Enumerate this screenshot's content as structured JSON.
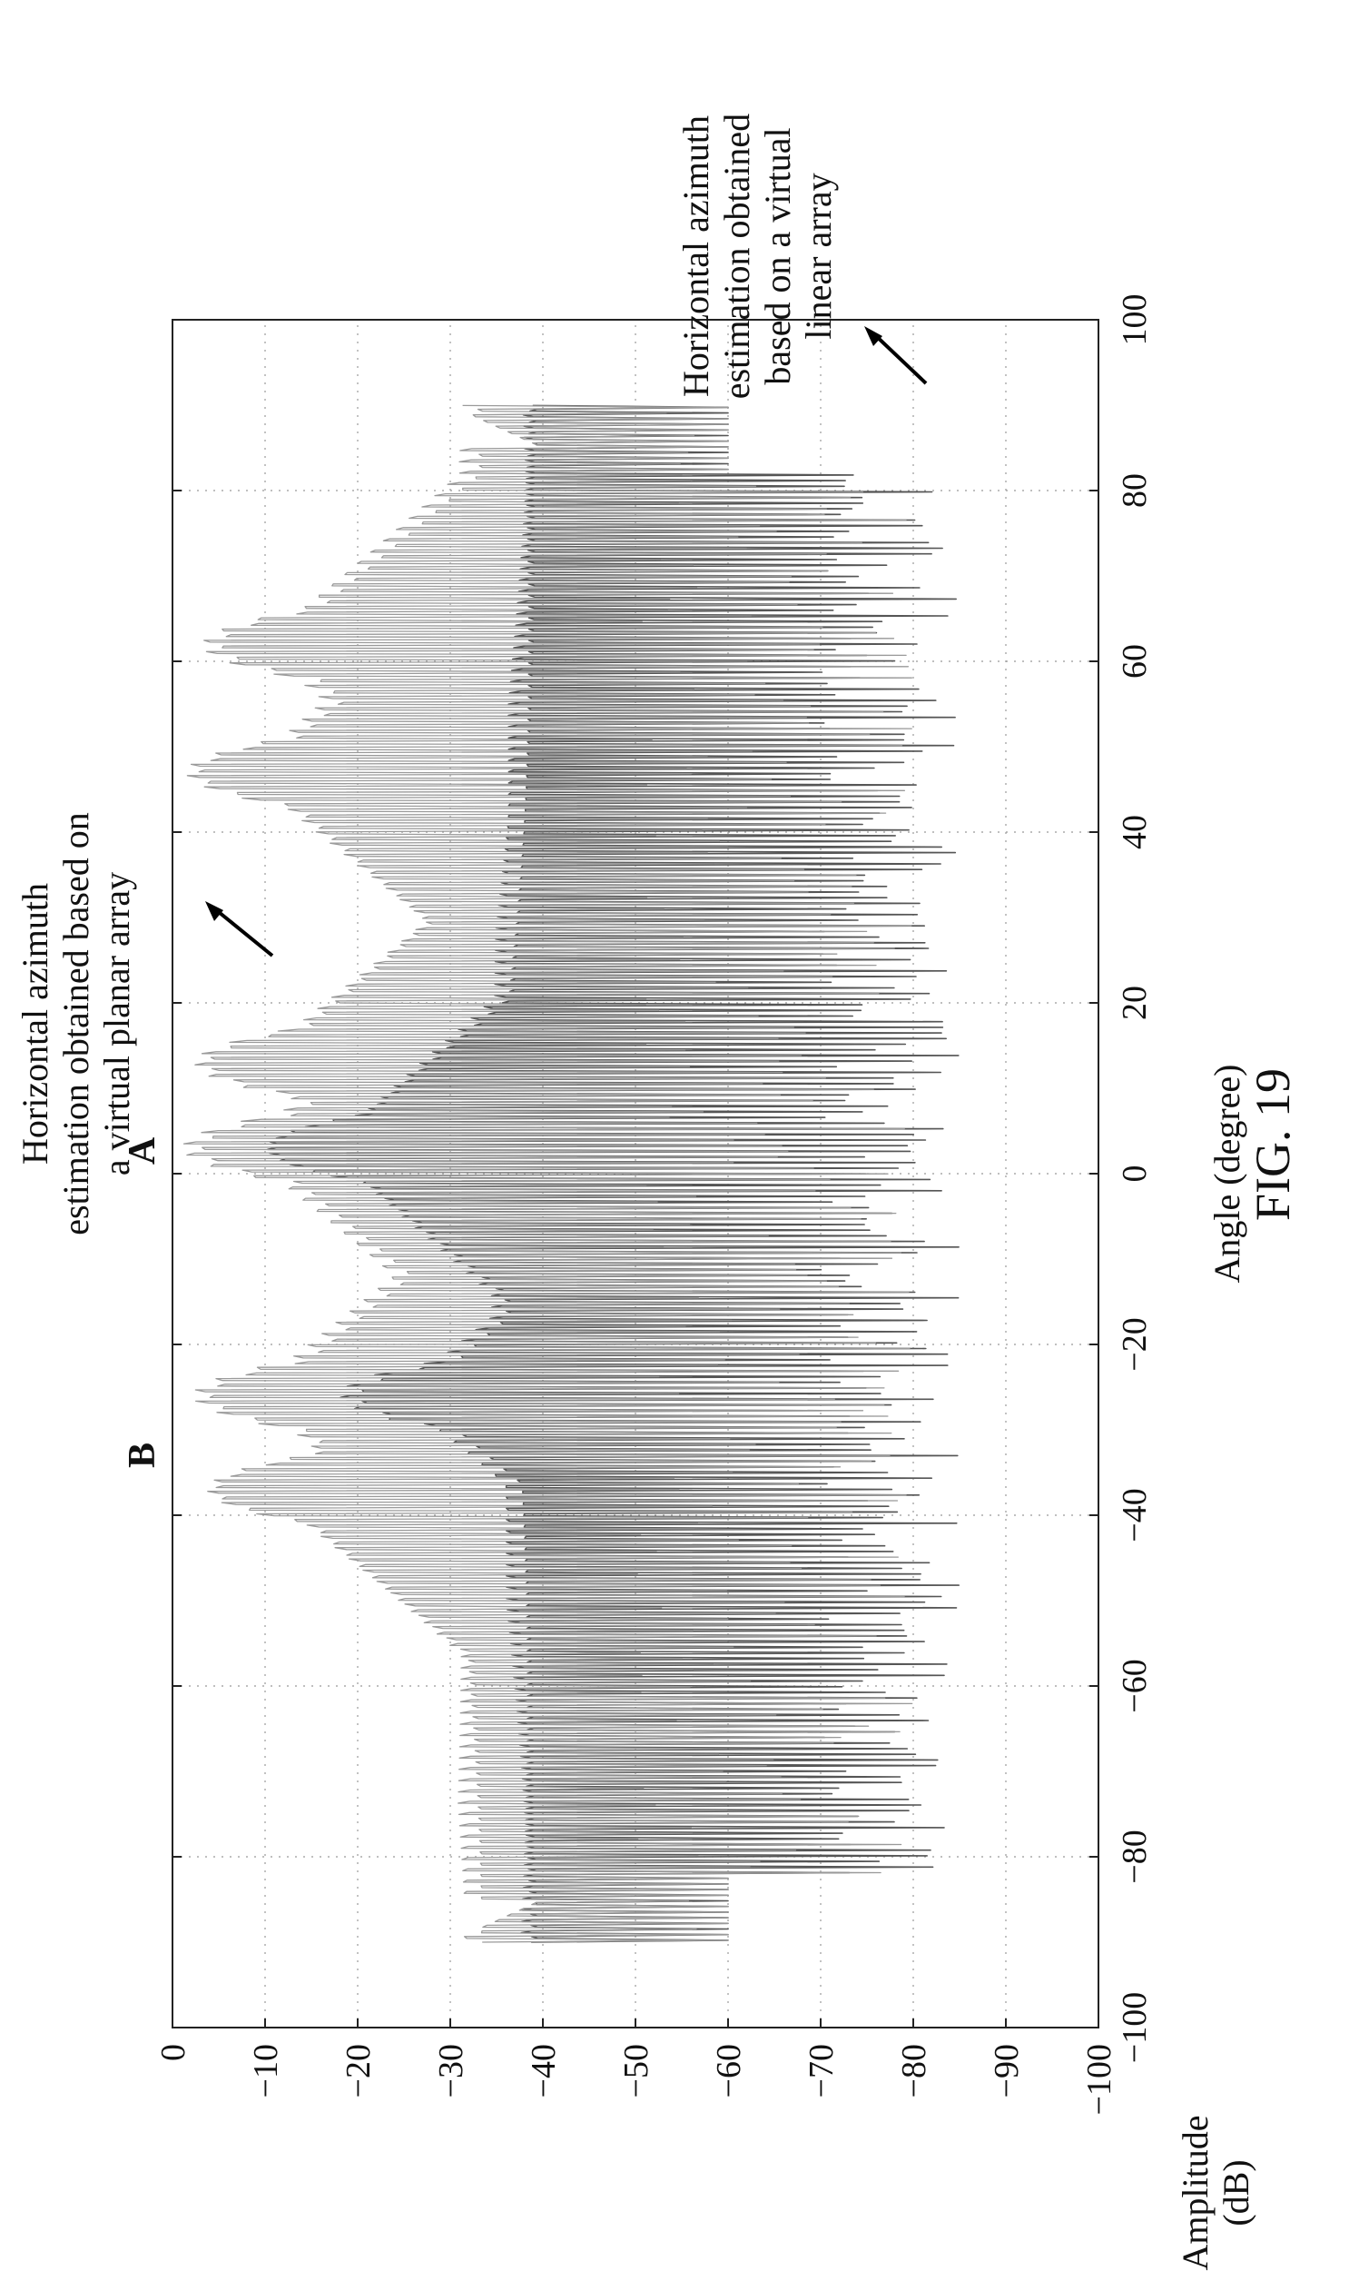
{
  "figure_label": "FIG. 19",
  "annotations": {
    "planar": [
      "Horizontal azimuth",
      "estimation obtained based on",
      "a virtual planar array"
    ],
    "linear": [
      "Horizontal azimuth",
      "estimation obtained",
      "based on a virtual",
      "linear array"
    ],
    "marker_a": "A",
    "marker_b": "B"
  },
  "chart_data": {
    "type": "line",
    "title": "",
    "xlabel": "Angle (degree)",
    "ylabel": [
      "Amplitude",
      "(dB)"
    ],
    "xlim": [
      -100,
      100
    ],
    "ylim": [
      -100,
      0
    ],
    "xticks": [
      "−100",
      "−80",
      "−60",
      "−40",
      "−20",
      "0",
      "20",
      "40",
      "60",
      "80",
      "100"
    ],
    "yticks": [
      "0",
      "−10",
      "−20",
      "−30",
      "−40",
      "−50",
      "−60",
      "−70",
      "−80",
      "−90",
      "−100"
    ],
    "grid": "dotted",
    "orientation": "rotated 90° counter-clockwise",
    "series": [
      {
        "color": "#555555",
        "x_range": [
          -90,
          90
        ],
        "floor_db": -33,
        "peaks": [
          {
            "x": 3,
            "y": -9
          },
          {
            "x": -26,
            "y": -18
          }
        ],
        "null_depth_db": [
          -70,
          -85
        ]
      },
      {
        "color": "#9a9a9a",
        "x_range": [
          -90,
          90
        ],
        "floor_db": -27,
        "peaks": [
          {
            "x": 3,
            "y": -1
          },
          {
            "x": 13,
            "y": -2
          },
          {
            "x": -26,
            "y": -2
          },
          {
            "x": -37,
            "y": -3
          },
          {
            "x": 47,
            "y": -1
          },
          {
            "x": 62,
            "y": -3
          }
        ],
        "null_depth_db": [
          -50,
          -80
        ]
      }
    ]
  }
}
